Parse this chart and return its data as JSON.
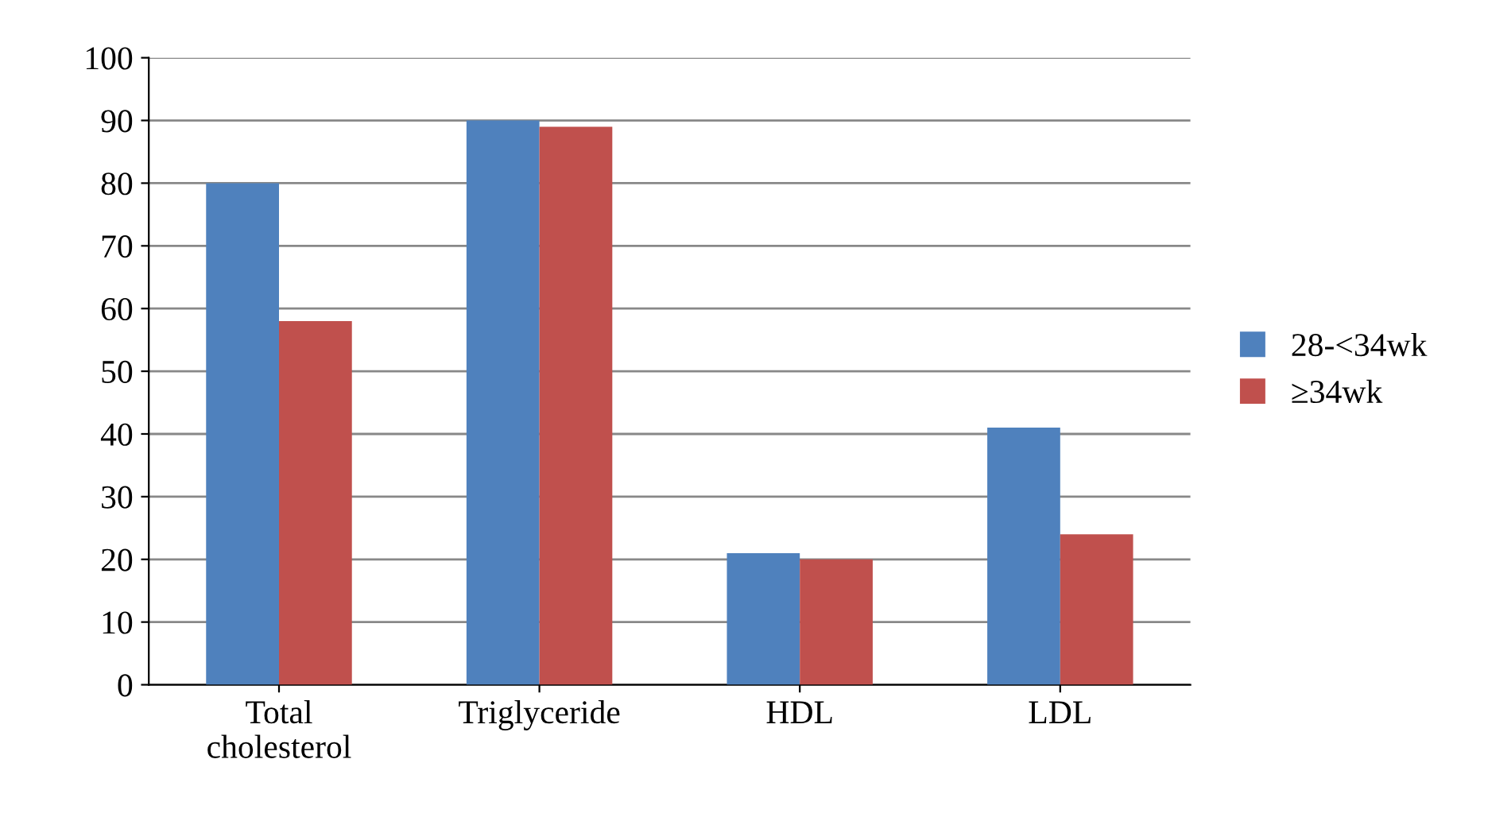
{
  "chart_data": {
    "type": "bar",
    "categories": [
      "Total\ncholesterol",
      "Triglyceride",
      "HDL",
      "LDL"
    ],
    "series": [
      {
        "name": "28-<34wk",
        "color": "#4f81bd",
        "values": [
          80,
          90,
          21,
          41
        ]
      },
      {
        "name": "≥34wk",
        "color": "#c0504d",
        "values": [
          58,
          89,
          20,
          24
        ]
      }
    ],
    "ylim": [
      0,
      100
    ],
    "yticks": [
      0,
      10,
      20,
      30,
      40,
      50,
      60,
      70,
      80,
      90,
      100
    ],
    "grid": "y",
    "legend": "right"
  }
}
